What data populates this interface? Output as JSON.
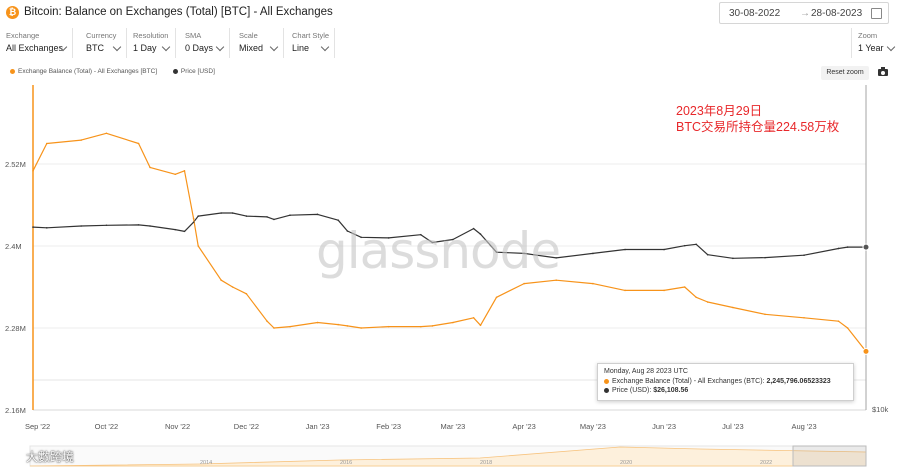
{
  "header": {
    "title": "Bitcoin: Balance on Exchanges (Total) [BTC] - All Exchanges",
    "date_start": "30-08-2022",
    "date_end": "28-08-2023"
  },
  "toolbar": [
    {
      "label": "Exchange",
      "value": "All Exchanges"
    },
    {
      "label": "Currency",
      "value": "BTC"
    },
    {
      "label": "Resolution",
      "value": "1 Day"
    },
    {
      "label": "SMA",
      "value": "0 Days"
    },
    {
      "label": "Scale",
      "value": "Mixed"
    },
    {
      "label": "Chart Style",
      "value": "Line"
    }
  ],
  "zoom": {
    "label": "Zoom",
    "value": "1 Year"
  },
  "legend": {
    "balance": "Exchange Balance (Total) - All Exchanges [BTC]",
    "price": "Price [USD]"
  },
  "reset_label": "Reset zoom",
  "tooltip": {
    "date": "Monday, Aug 28 2023 UTC",
    "balance_label": "Exchange Balance (Total) - All Exchanges (BTC):",
    "balance_value": "2,245,796.06523323",
    "price_label": "Price (USD):",
    "price_value": "$26,108.56"
  },
  "annotation": {
    "line1": "2023年8月29日",
    "line2": "BTC交易所持仓量224.58万枚"
  },
  "watermark": "glassnode",
  "corner_logo": "大數跨境",
  "colors": {
    "balance": "#f7931a",
    "price": "#333333",
    "annotation": "#e8282b"
  },
  "chart_data": {
    "type": "line",
    "title": "Bitcoin: Balance on Exchanges (Total) [BTC] - All Exchanges",
    "x": [
      "2022-08-30",
      "2022-09-05",
      "2022-09-20",
      "2022-10-01",
      "2022-10-15",
      "2022-10-20",
      "2022-10-31",
      "2022-11-04",
      "2022-11-08",
      "2022-11-10",
      "2022-11-20",
      "2022-11-25",
      "2022-12-01",
      "2022-12-10",
      "2022-12-13",
      "2022-12-20",
      "2023-01-01",
      "2023-01-10",
      "2023-01-14",
      "2023-01-20",
      "2023-02-01",
      "2023-02-15",
      "2023-02-20",
      "2023-03-01",
      "2023-03-10",
      "2023-03-13",
      "2023-03-20",
      "2023-04-01",
      "2023-04-15",
      "2023-05-01",
      "2023-05-15",
      "2023-06-01",
      "2023-06-10",
      "2023-06-15",
      "2023-06-20",
      "2023-07-01",
      "2023-07-15",
      "2023-08-01",
      "2023-08-16",
      "2023-08-20",
      "2023-08-28"
    ],
    "series": [
      {
        "name": "Exchange Balance (Total) - All Exchanges [BTC]",
        "axis": "left",
        "values": [
          2510000,
          2550000,
          2555000,
          2565000,
          2550000,
          2515000,
          2505000,
          2510000,
          2440000,
          2400000,
          2350000,
          2340000,
          2330000,
          2290000,
          2280000,
          2282000,
          2288000,
          2285000,
          2283000,
          2280000,
          2282000,
          2282000,
          2283000,
          2288000,
          2295000,
          2284000,
          2325000,
          2345000,
          2350000,
          2345000,
          2335000,
          2335000,
          2340000,
          2325000,
          2318000,
          2310000,
          2300000,
          2295000,
          2290000,
          2280000,
          2245796
        ]
      },
      {
        "name": "Price [USD]",
        "axis": "right",
        "values": [
          19800,
          20000,
          19500,
          19300,
          19200,
          19500,
          20500,
          21000,
          18500,
          17000,
          16300,
          16300,
          17000,
          17200,
          17800,
          16800,
          16600,
          18000,
          20900,
          22800,
          23000,
          22000,
          24500,
          23500,
          20200,
          21800,
          28000,
          28500,
          30300,
          28500,
          27000,
          27000,
          25600,
          25100,
          29000,
          30500,
          30200,
          29200,
          26600,
          26100,
          26108
        ]
      }
    ],
    "xticks": [
      "Sep '22",
      "Oct '22",
      "Nov '22",
      "Dec '22",
      "Jan '23",
      "Feb '23",
      "Mar '23",
      "Apr '23",
      "May '23",
      "Jun '23",
      "Jul '23",
      "Aug '23"
    ],
    "yticks_left": [
      "2.16M",
      "2.28M",
      "2.4M",
      "2.52M"
    ],
    "yticks_right": [
      "$10k"
    ],
    "y_left_range": [
      2160000,
      2600000
    ],
    "navigator_years": [
      "2014",
      "2016",
      "2018",
      "2020",
      "2022"
    ]
  }
}
